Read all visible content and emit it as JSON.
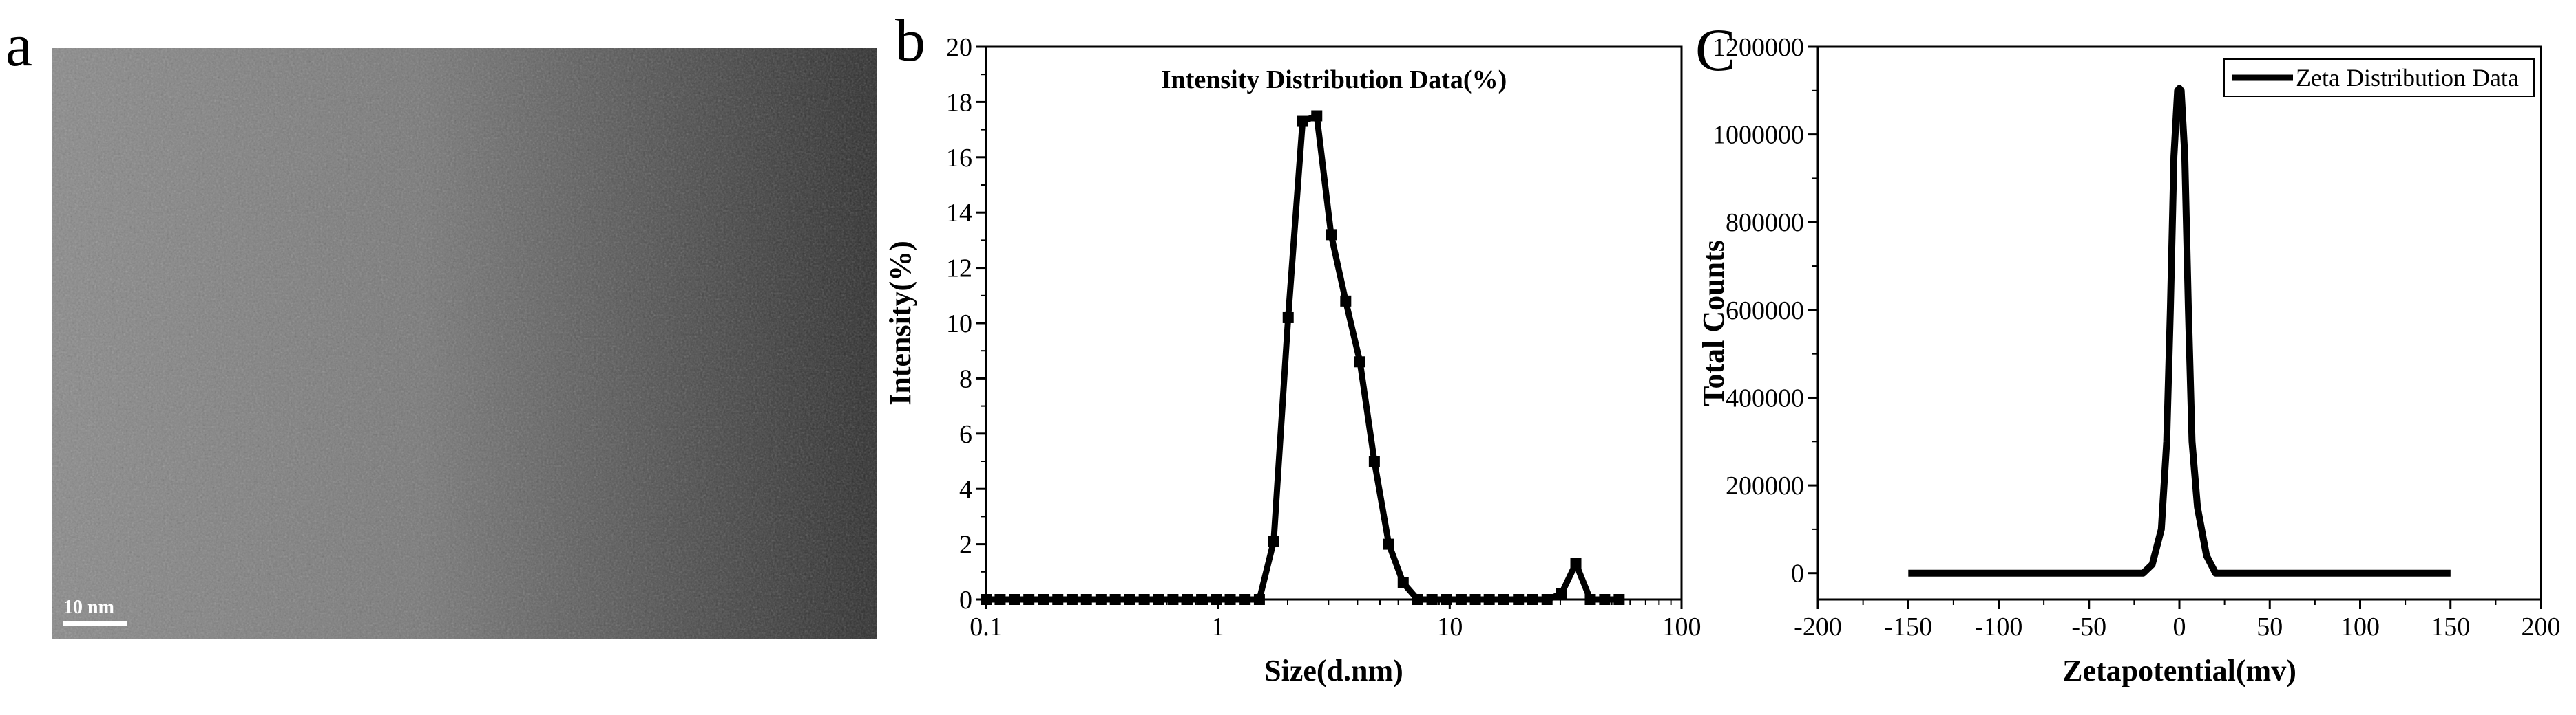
{
  "panels": {
    "a": {
      "letter": "a",
      "scale_bar_label": "10 nm"
    },
    "b": {
      "letter": "b"
    },
    "c": {
      "letter": "C"
    }
  },
  "chart_data": [
    {
      "id": "b",
      "type": "line",
      "title": "Intensity Distribution Data(%)",
      "xlabel": "Size(d.nm)",
      "ylabel": "Intensity(%)",
      "xscale": "log",
      "xlim": [
        0.1,
        100
      ],
      "ylim": [
        0,
        20
      ],
      "xticks": [
        0.1,
        1,
        10,
        100
      ],
      "xtick_labels": [
        "0.1",
        "1",
        "10",
        "100"
      ],
      "yticks": [
        0,
        2,
        4,
        6,
        8,
        10,
        12,
        14,
        16,
        18,
        20
      ],
      "ytick_labels": [
        "0",
        "2",
        "4",
        "6",
        "8",
        "10",
        "12",
        "14",
        "16",
        "18",
        "20"
      ],
      "markers": "square",
      "series": [
        {
          "name": "Intensity",
          "x": [
            0.1,
            0.115,
            0.133,
            0.153,
            0.177,
            0.204,
            0.235,
            0.271,
            0.313,
            0.361,
            0.417,
            0.481,
            0.555,
            0.64,
            0.738,
            0.851,
            0.982,
            1.13,
            1.31,
            1.51,
            1.74,
            2.01,
            2.32,
            2.67,
            3.08,
            3.56,
            4.1,
            4.73,
            5.46,
            6.3,
            7.27,
            8.39,
            9.68,
            11.2,
            12.9,
            14.8,
            17.1,
            19.8,
            22.8,
            26.3,
            30.3,
            35.0,
            40.4,
            46.6,
            53.8
          ],
          "y": [
            0,
            0,
            0,
            0,
            0,
            0,
            0,
            0,
            0,
            0,
            0,
            0,
            0,
            0,
            0,
            0,
            0,
            0,
            0,
            0,
            2.1,
            10.2,
            17.3,
            17.5,
            13.2,
            10.8,
            8.6,
            5.0,
            2.0,
            0.6,
            0,
            0,
            0,
            0,
            0,
            0,
            0,
            0,
            0,
            0,
            0.2,
            1.3,
            0,
            0,
            0
          ]
        }
      ]
    },
    {
      "id": "c",
      "type": "line",
      "title": "",
      "xlabel": "Zetapotential(mv)",
      "ylabel": "Total Counts",
      "xlim": [
        -200,
        200
      ],
      "ylim": [
        -60000,
        1200000
      ],
      "xticks": [
        -200,
        -150,
        -100,
        -50,
        0,
        50,
        100,
        150,
        200
      ],
      "xtick_labels": [
        "-200",
        "-150",
        "-100",
        "-50",
        "0",
        "50",
        "100",
        "150",
        "200"
      ],
      "yticks": [
        0,
        200000,
        400000,
        600000,
        800000,
        1000000,
        1200000
      ],
      "ytick_labels": [
        "0",
        "200000",
        "400000",
        "600000",
        "800000",
        "1000000",
        "1200000"
      ],
      "legend": {
        "position": "top-right",
        "entries": [
          "Zeta Distribution Data"
        ]
      },
      "series": [
        {
          "name": "Zeta Distribution Data",
          "x": [
            -150,
            -20,
            -15,
            -10,
            -7,
            -5,
            -3,
            -1,
            0,
            1,
            3,
            5,
            7,
            10,
            15,
            20,
            150
          ],
          "y": [
            0,
            0,
            20000,
            100000,
            300000,
            600000,
            950000,
            1100000,
            1105000,
            1100000,
            950000,
            600000,
            300000,
            150000,
            40000,
            0,
            0
          ]
        }
      ]
    }
  ]
}
